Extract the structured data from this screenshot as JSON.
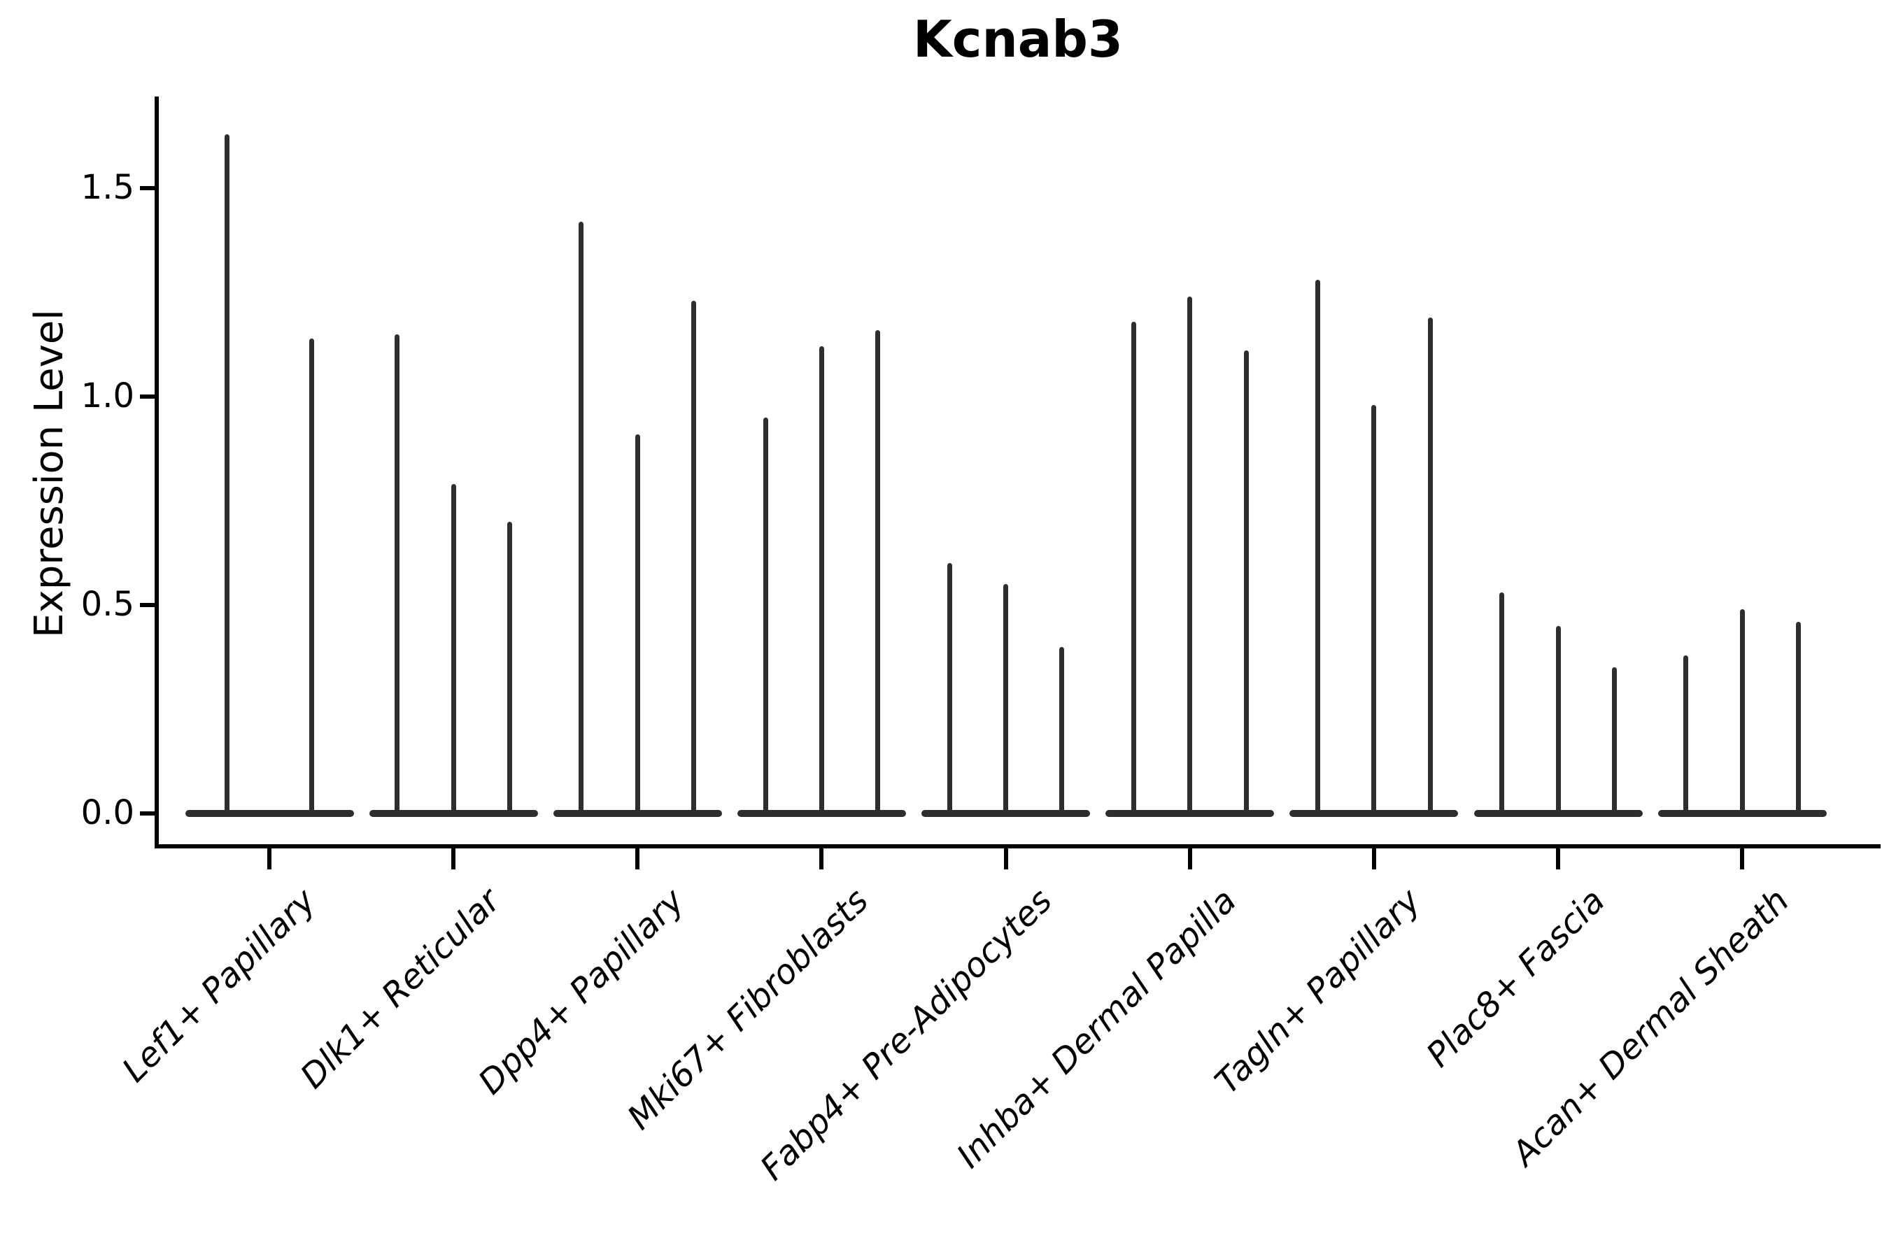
{
  "title": "Kcnab3",
  "axes": {
    "ylabel": "Expression Level",
    "ytick_labels": [
      "0.0",
      "0.5",
      "1.0",
      "1.5"
    ]
  },
  "chart_data": {
    "type": "violin",
    "title": "Kcnab3",
    "ylabel": "Expression Level",
    "xlabel": "",
    "legend": "none",
    "grid": false,
    "yticks": [
      0.0,
      0.5,
      1.0,
      1.5
    ],
    "ylim": [
      0,
      1.72
    ],
    "categories": [
      "Lef1+ Papillary",
      "Dlk1+ Reticular",
      "Dpp4+ Papillary",
      "Mki67+ Fibroblasts",
      "Fabp4+ Pre-Adipocytes",
      "Inhba+ Dermal Papilla",
      "Tagln+ Papillary",
      "Plac8+ Fascia",
      "Acan+ Dermal Sheath"
    ],
    "violin_max_values": [
      [
        1.63,
        1.14
      ],
      [
        1.15,
        0.79,
        0.7
      ],
      [
        1.42,
        0.91,
        1.23
      ],
      [
        0.95,
        1.12,
        1.16
      ],
      [
        0.6,
        0.55,
        0.4
      ],
      [
        1.18,
        1.24,
        1.11
      ],
      [
        1.28,
        0.98,
        1.19
      ],
      [
        0.53,
        0.45,
        0.35
      ],
      [
        0.38,
        0.49,
        0.46
      ]
    ],
    "violin_color": "#2e2e2e"
  }
}
